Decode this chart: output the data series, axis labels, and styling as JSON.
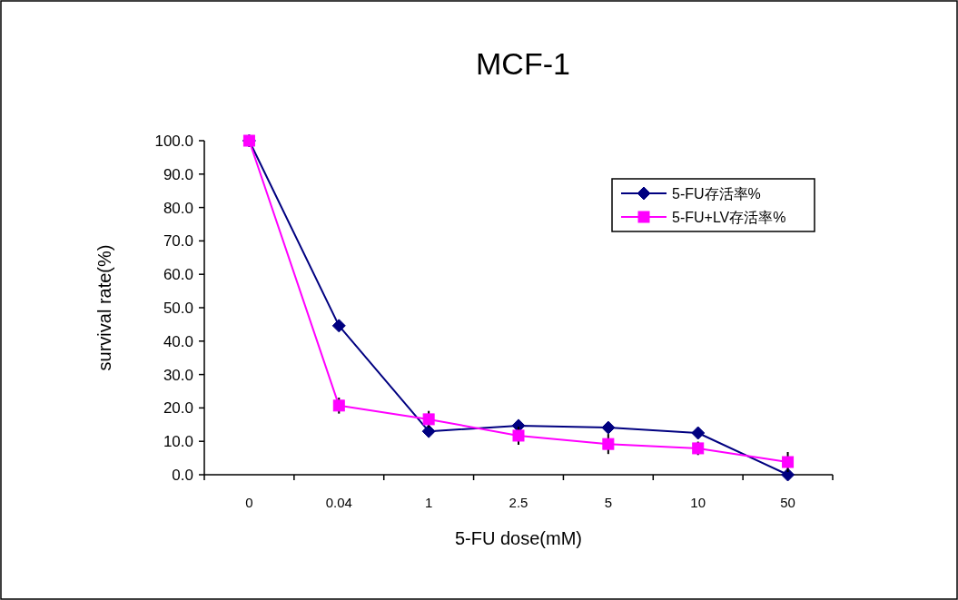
{
  "chart_data": {
    "type": "line",
    "title": "MCF-1",
    "xlabel": "5-FU dose(mM)",
    "ylabel": "survival rate(%)",
    "categories": [
      "0",
      "0.04",
      "1",
      "2.5",
      "5",
      "10",
      "50"
    ],
    "series": [
      {
        "name": "5-FU存活率%",
        "color": "#000080",
        "marker": "diamond",
        "values": [
          100,
          44.6,
          13.0,
          14.7,
          14.1,
          12.5,
          0
        ]
      },
      {
        "name": "5-FU+LV存活率%",
        "color": "#ff00ff",
        "marker": "square",
        "values": [
          100,
          20.7,
          16.6,
          11.7,
          9.2,
          7.9,
          3.8
        ],
        "errors": [
          null,
          2.4,
          2.5,
          2.7,
          3,
          2,
          3
        ]
      }
    ],
    "ylim": [
      0,
      100
    ],
    "yticks": [
      {
        "value": 0,
        "label": "0.0"
      },
      {
        "value": 10,
        "label": "10.0"
      },
      {
        "value": 20,
        "label": "20.0"
      },
      {
        "value": 30,
        "label": "30.0"
      },
      {
        "value": 40,
        "label": "40.0"
      },
      {
        "value": 50,
        "label": "50.0"
      },
      {
        "value": 60,
        "label": "60.0"
      },
      {
        "value": 70,
        "label": "70.0"
      },
      {
        "value": 80,
        "label": "80.0"
      },
      {
        "value": 90,
        "label": "90.0"
      },
      {
        "value": 100,
        "label": "100.0"
      }
    ],
    "legend": "top right",
    "grid": false
  }
}
